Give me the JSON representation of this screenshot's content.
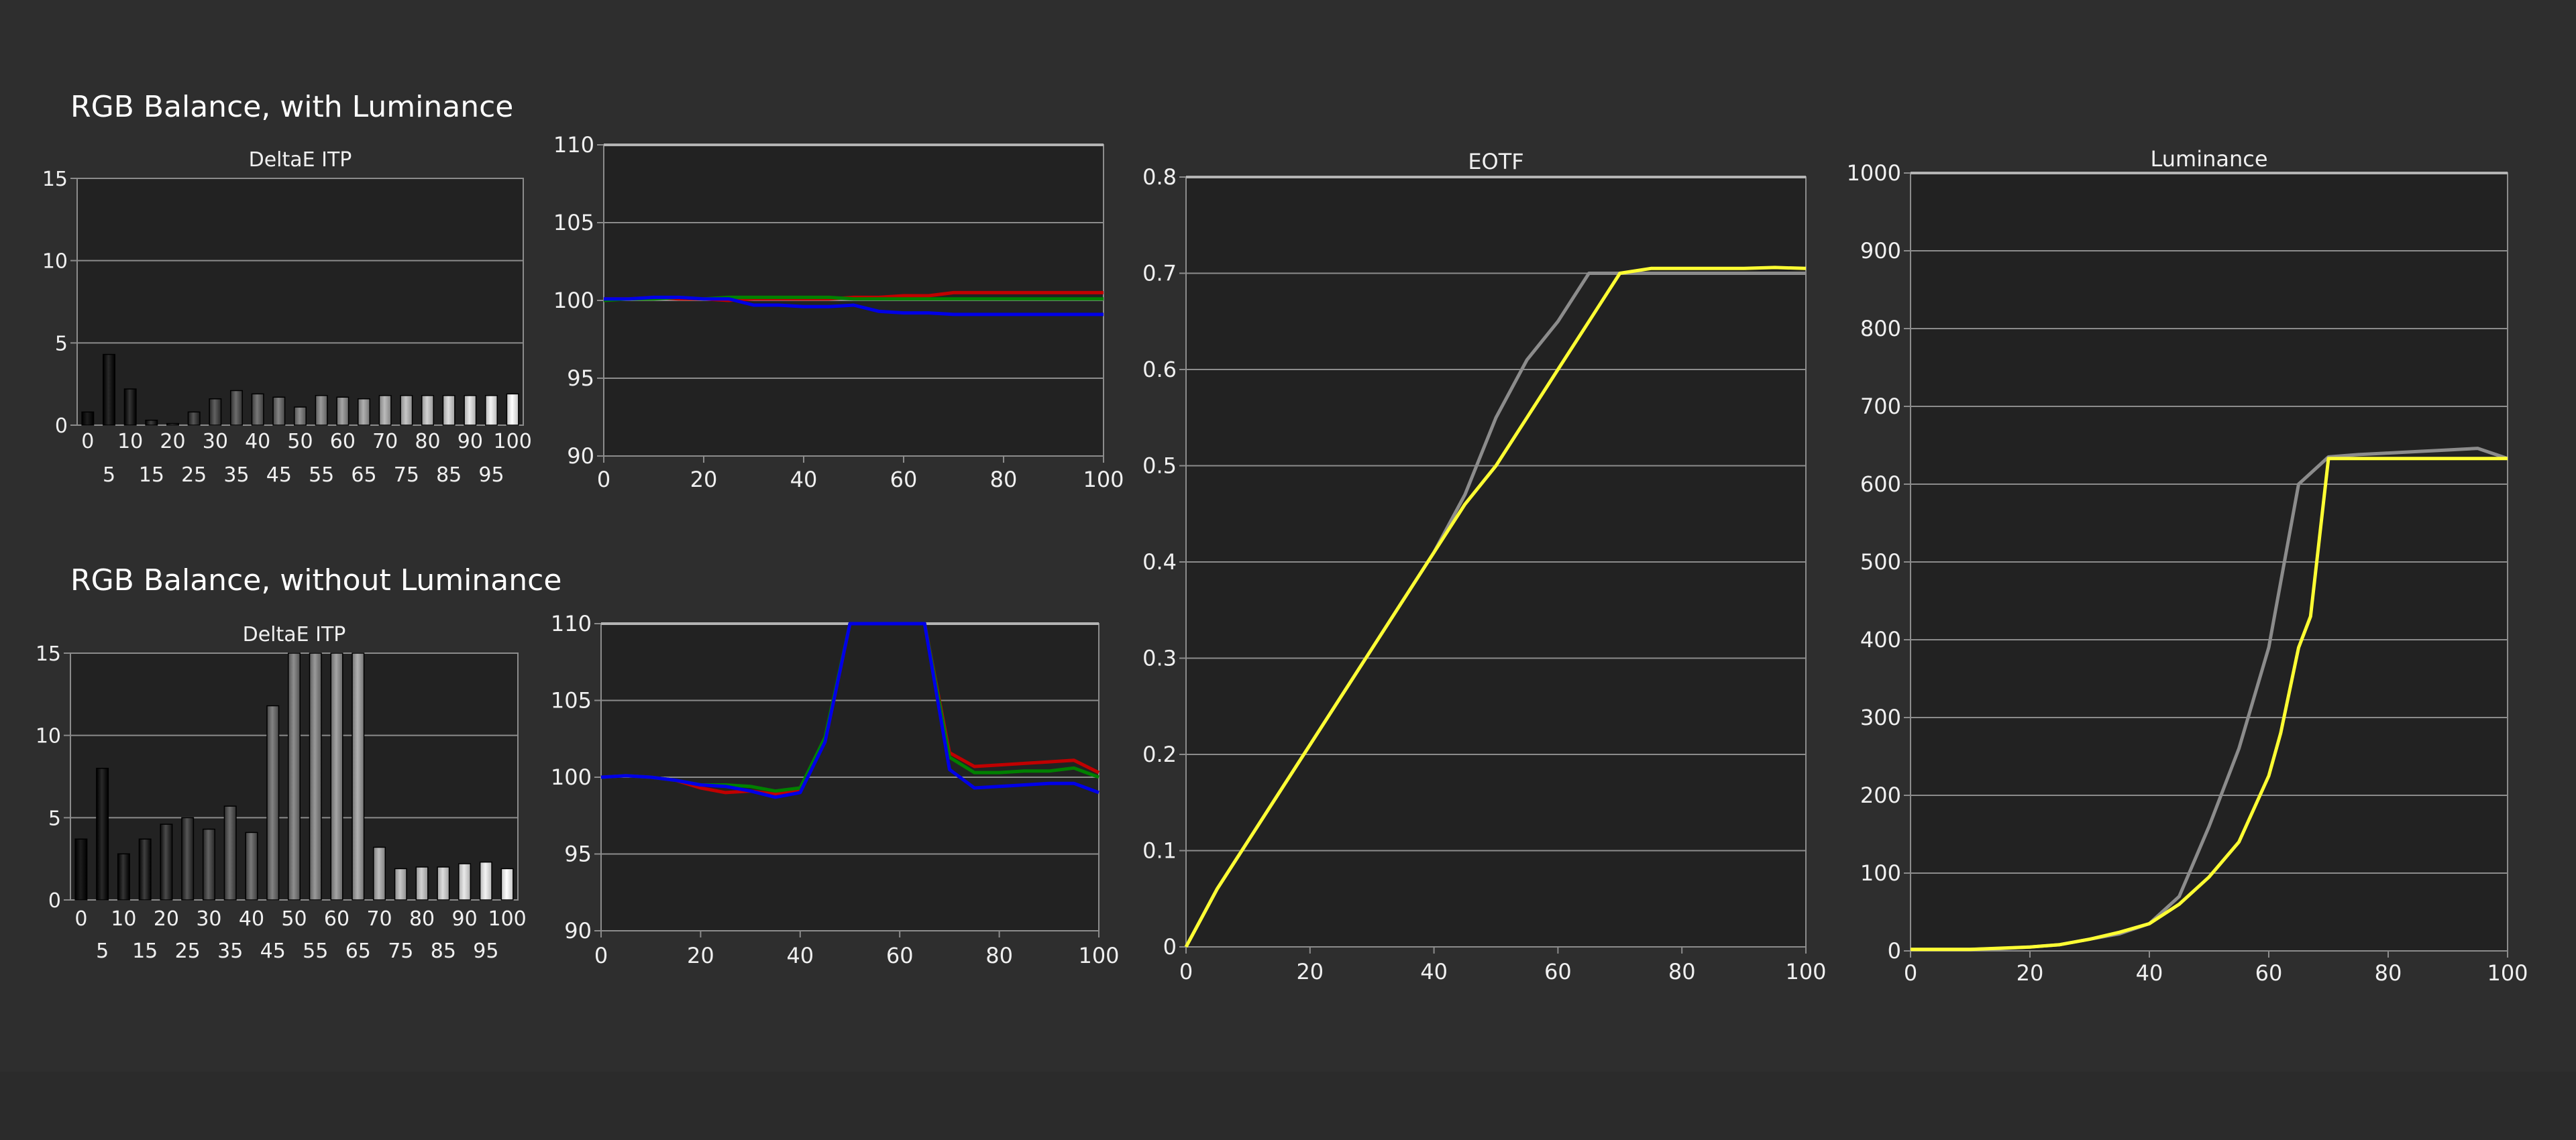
{
  "sections": {
    "with_luminance": "RGB Balance, with Luminance",
    "without_luminance": "RGB Balance, without Luminance"
  },
  "colors": {
    "background": "#2e2e2e",
    "plot_background": "#222222",
    "grid": "#8c8c8c",
    "red": "#c00000",
    "green": "#008000",
    "blue": "#0000e6",
    "target": "#8c8c8c",
    "measured": "#ffff33"
  },
  "chart_data": [
    {
      "id": "delta-top",
      "type": "bar",
      "title": "DeltaE ITP",
      "categories": [
        "0",
        "5",
        "10",
        "15",
        "20",
        "25",
        "30",
        "35",
        "40",
        "45",
        "50",
        "55",
        "60",
        "65",
        "70",
        "75",
        "80",
        "85",
        "90",
        "95",
        "100"
      ],
      "category_labels_row1": [
        "0",
        "10",
        "20",
        "30",
        "40",
        "50",
        "60",
        "70",
        "80",
        "90",
        "100"
      ],
      "category_labels_row2": [
        "5",
        "15",
        "25",
        "35",
        "45",
        "55",
        "65",
        "75",
        "85",
        "95"
      ],
      "values": [
        0.8,
        4.3,
        2.2,
        0.3,
        0.1,
        0.8,
        1.6,
        2.1,
        1.9,
        1.7,
        1.1,
        1.8,
        1.7,
        1.6,
        1.8,
        1.8,
        1.8,
        1.8,
        1.8,
        1.8,
        1.9
      ],
      "ylim": [
        0,
        15
      ],
      "yticks": [
        "0",
        "5",
        "10",
        "15"
      ],
      "grid": true
    },
    {
      "id": "rgb-top",
      "type": "line",
      "title": "",
      "xlim": [
        0,
        100
      ],
      "ylim": [
        90,
        110
      ],
      "xticks": [
        "0",
        "20",
        "40",
        "60",
        "80",
        "100"
      ],
      "yticks": [
        "90",
        "95",
        "100",
        "105",
        "110"
      ],
      "grid": true,
      "series": [
        {
          "color": "red",
          "x": [
            0,
            5,
            10,
            15,
            20,
            25,
            30,
            35,
            40,
            45,
            50,
            55,
            60,
            65,
            70,
            75,
            80,
            85,
            90,
            95,
            100
          ],
          "y": [
            100.1,
            100.1,
            100.2,
            100.1,
            100.1,
            100.0,
            100.1,
            100.1,
            100.1,
            100.1,
            100.2,
            100.2,
            100.3,
            100.3,
            100.5,
            100.5,
            100.5,
            100.5,
            100.5,
            100.5,
            100.5
          ]
        },
        {
          "color": "green",
          "x": [
            0,
            5,
            10,
            15,
            20,
            25,
            30,
            35,
            40,
            45,
            50,
            55,
            60,
            65,
            70,
            75,
            80,
            85,
            90,
            95,
            100
          ],
          "y": [
            100.0,
            100.1,
            100.1,
            100.2,
            100.1,
            100.2,
            100.2,
            100.2,
            100.2,
            100.2,
            100.1,
            100.1,
            100.1,
            100.1,
            100.1,
            100.1,
            100.1,
            100.1,
            100.1,
            100.1,
            100.1
          ]
        },
        {
          "color": "blue",
          "x": [
            0,
            5,
            10,
            15,
            20,
            25,
            30,
            35,
            40,
            45,
            50,
            55,
            60,
            65,
            70,
            75,
            80,
            85,
            90,
            95,
            100
          ],
          "y": [
            100.1,
            100.1,
            100.2,
            100.2,
            100.1,
            100.1,
            99.7,
            99.7,
            99.6,
            99.6,
            99.7,
            99.3,
            99.2,
            99.2,
            99.1,
            99.1,
            99.1,
            99.1,
            99.1,
            99.1,
            99.1
          ]
        }
      ]
    },
    {
      "id": "delta-bottom",
      "type": "bar",
      "title": "DeltaE ITP",
      "categories": [
        "0",
        "5",
        "10",
        "15",
        "20",
        "25",
        "30",
        "35",
        "40",
        "45",
        "50",
        "55",
        "60",
        "65",
        "70",
        "75",
        "80",
        "85",
        "90",
        "95",
        "100"
      ],
      "category_labels_row1": [
        "0",
        "10",
        "20",
        "30",
        "40",
        "50",
        "60",
        "70",
        "80",
        "90",
        "100"
      ],
      "category_labels_row2": [
        "5",
        "15",
        "25",
        "35",
        "45",
        "55",
        "65",
        "75",
        "85",
        "95"
      ],
      "values": [
        3.7,
        8.0,
        2.8,
        3.7,
        4.6,
        5.0,
        4.3,
        5.7,
        4.1,
        11.8,
        15.0,
        15.0,
        15.0,
        15.0,
        3.2,
        1.9,
        2.0,
        2.0,
        2.2,
        2.3,
        1.9
      ],
      "ylim": [
        0,
        15
      ],
      "yticks": [
        "0",
        "5",
        "10",
        "15"
      ],
      "grid": true
    },
    {
      "id": "rgb-bottom",
      "type": "line",
      "title": "",
      "xlim": [
        0,
        100
      ],
      "ylim": [
        90,
        110
      ],
      "xticks": [
        "0",
        "20",
        "40",
        "60",
        "80",
        "100"
      ],
      "yticks": [
        "90",
        "95",
        "100",
        "105",
        "110"
      ],
      "grid": true,
      "series": [
        {
          "color": "red",
          "x": [
            0,
            5,
            10,
            15,
            20,
            25,
            30,
            35,
            40,
            45,
            50,
            55,
            60,
            65,
            70,
            75,
            80,
            85,
            90,
            95,
            100
          ],
          "y": [
            100.0,
            100.1,
            100.0,
            99.8,
            99.3,
            99.0,
            99.1,
            98.9,
            99.2,
            102.3,
            110.0,
            110.0,
            110.0,
            110.0,
            101.6,
            100.7,
            100.8,
            100.9,
            101.0,
            101.1,
            100.3
          ]
        },
        {
          "color": "green",
          "x": [
            0,
            5,
            10,
            15,
            20,
            25,
            30,
            35,
            40,
            45,
            50,
            55,
            60,
            65,
            70,
            75,
            80,
            85,
            90,
            95,
            100
          ],
          "y": [
            100.0,
            100.1,
            100.0,
            99.8,
            99.5,
            99.5,
            99.4,
            99.1,
            99.3,
            102.6,
            110.0,
            110.0,
            110.0,
            110.0,
            101.3,
            100.3,
            100.3,
            100.4,
            100.4,
            100.6,
            100.0
          ]
        },
        {
          "color": "blue",
          "x": [
            0,
            5,
            10,
            15,
            20,
            25,
            30,
            35,
            40,
            45,
            50,
            55,
            60,
            65,
            70,
            75,
            80,
            85,
            90,
            95,
            100
          ],
          "y": [
            100.0,
            100.1,
            100.0,
            99.8,
            99.5,
            99.4,
            99.1,
            98.7,
            99.0,
            102.3,
            110.0,
            110.0,
            110.0,
            110.0,
            100.5,
            99.3,
            99.4,
            99.5,
            99.6,
            99.6,
            99.0
          ]
        }
      ]
    },
    {
      "id": "eotf",
      "type": "line",
      "title": "EOTF",
      "xlim": [
        0,
        100
      ],
      "ylim": [
        0,
        0.8
      ],
      "xticks": [
        "0",
        "20",
        "40",
        "60",
        "80",
        "100"
      ],
      "yticks": [
        "0",
        "0.1",
        "0.2",
        "0.3",
        "0.4",
        "0.5",
        "0.6",
        "0.7",
        "0.8"
      ],
      "grid": true,
      "series": [
        {
          "color": "target",
          "x": [
            0,
            5,
            10,
            15,
            20,
            25,
            30,
            35,
            40,
            45,
            50,
            55,
            60,
            65,
            70,
            75,
            80,
            85,
            90,
            95,
            100
          ],
          "y": [
            0,
            0.06,
            0.11,
            0.16,
            0.21,
            0.26,
            0.31,
            0.36,
            0.41,
            0.47,
            0.55,
            0.61,
            0.65,
            0.7,
            0.7,
            0.7,
            0.7,
            0.7,
            0.7,
            0.7,
            0.7
          ]
        },
        {
          "color": "measured",
          "x": [
            0,
            5,
            10,
            15,
            20,
            25,
            30,
            35,
            40,
            45,
            50,
            55,
            60,
            65,
            68,
            70,
            75,
            80,
            85,
            90,
            95,
            100
          ],
          "y": [
            0,
            0.06,
            0.11,
            0.16,
            0.21,
            0.26,
            0.31,
            0.36,
            0.41,
            0.46,
            0.5,
            0.55,
            0.6,
            0.65,
            0.68,
            0.7,
            0.705,
            0.705,
            0.705,
            0.705,
            0.706,
            0.705
          ]
        }
      ]
    },
    {
      "id": "luminance",
      "type": "line",
      "title": "Luminance",
      "xlim": [
        0,
        100
      ],
      "ylim": [
        0,
        1000
      ],
      "xticks": [
        "0",
        "20",
        "40",
        "60",
        "80",
        "100"
      ],
      "yticks": [
        "0",
        "100",
        "200",
        "300",
        "400",
        "500",
        "600",
        "700",
        "800",
        "900",
        "1000"
      ],
      "grid": true,
      "series": [
        {
          "color": "target",
          "x": [
            0,
            5,
            10,
            15,
            20,
            25,
            30,
            35,
            40,
            45,
            50,
            55,
            60,
            65,
            70,
            75,
            80,
            85,
            90,
            95,
            100
          ],
          "y": [
            2,
            2,
            2,
            3,
            5,
            8,
            15,
            22,
            35,
            70,
            160,
            260,
            390,
            600,
            635,
            638,
            640,
            642,
            644,
            646,
            633
          ]
        },
        {
          "color": "measured",
          "x": [
            0,
            10,
            20,
            25,
            30,
            35,
            40,
            45,
            50,
            55,
            60,
            62,
            65,
            67,
            70,
            75,
            80,
            85,
            90,
            95,
            100
          ],
          "y": [
            2,
            2,
            5,
            8,
            15,
            24,
            35,
            60,
            95,
            140,
            225,
            280,
            390,
            430,
            633,
            633,
            633,
            633,
            633,
            633,
            633
          ]
        }
      ]
    }
  ]
}
